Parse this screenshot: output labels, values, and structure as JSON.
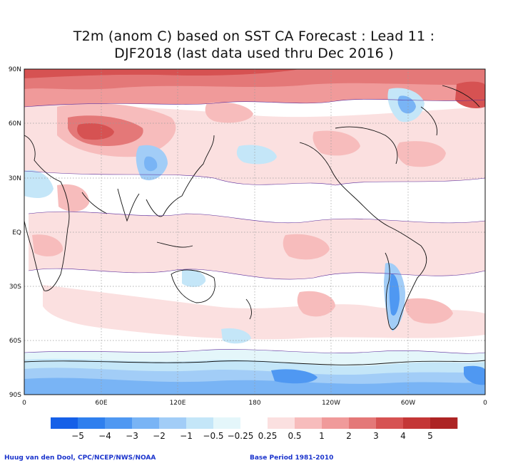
{
  "title_line1": "T2m (anom C) based on SST CA Forecast : Lead 11 :",
  "title_line2": "DJF2018 (last data used thru Dec 2016 )",
  "lat_labels": [
    "90N",
    "60N",
    "30N",
    "EQ",
    "30S",
    "60S",
    "90S"
  ],
  "lon_labels": [
    "0",
    "60E",
    "120E",
    "180",
    "120W",
    "60W",
    "0"
  ],
  "colorbar": {
    "labels": [
      "−5",
      "−4",
      "−3",
      "−2",
      "−1",
      "−0.5",
      "−0.25",
      "0.25",
      "0.5",
      "1",
      "2",
      "3",
      "4",
      "5"
    ],
    "colors": [
      "#1560e8",
      "#2f7fee",
      "#4f98f2",
      "#79b4f5",
      "#a2cdf7",
      "#c4e6f8",
      "#e4f6fa",
      "#ffffff",
      "#fbe0e0",
      "#f7bcbc",
      "#f09a9a",
      "#e47878",
      "#d65252",
      "#c43636",
      "#ad2424"
    ]
  },
  "footer_left": "Huug van den Dool, CPC/NCEP/NWS/NOAA",
  "footer_right": "Base Period 1981-2010"
}
